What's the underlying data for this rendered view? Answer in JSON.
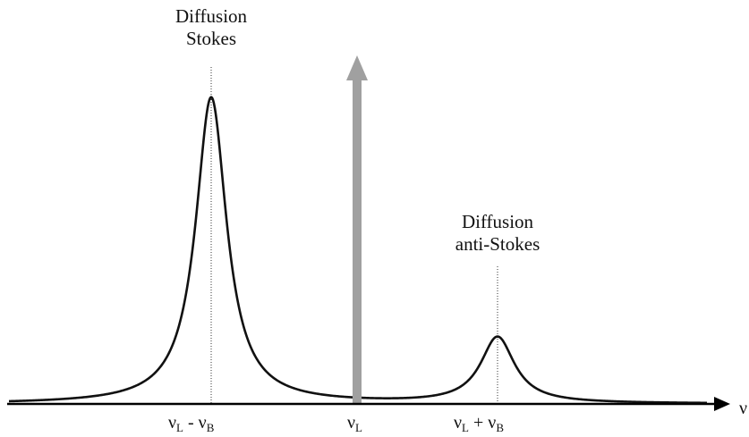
{
  "peaks": {
    "stokes": {
      "line1": "Diffusion",
      "line2": "Stokes",
      "relative_height": 1.0
    },
    "anti_stokes": {
      "line1": "Diffusion",
      "line2": "anti-Stokes",
      "relative_height": 0.22
    }
  },
  "x_ticks": {
    "stokes": {
      "nu": "ν",
      "sub1": "L",
      "op": " - ",
      "nu2": "ν",
      "sub2": "B"
    },
    "laser": {
      "nu": "ν",
      "sub1": "L"
    },
    "anti_stokes": {
      "nu": "ν",
      "sub1": "L",
      "op": " + ",
      "nu2": "ν",
      "sub2": "B"
    }
  },
  "axis_label": "ν",
  "colors": {
    "curve": "#111111",
    "laser_arrow": "#a0a0a0",
    "axis": "#000000"
  }
}
